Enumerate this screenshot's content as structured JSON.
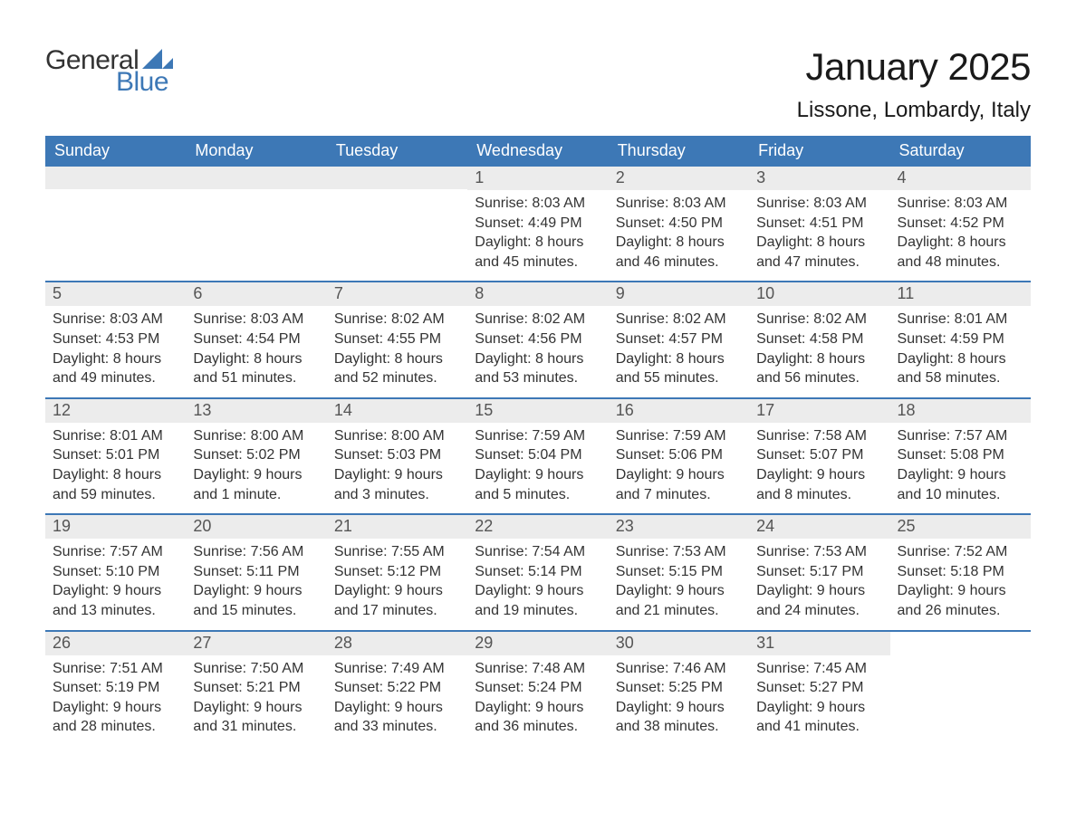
{
  "logo": {
    "general": "General",
    "blue": "Blue",
    "tri_color": "#3d78b6"
  },
  "title": "January 2025",
  "subtitle": "Lissone, Lombardy, Italy",
  "colors": {
    "header_bg": "#3d78b6",
    "header_text": "#ffffff",
    "daynum_bg": "#ececec",
    "daynum_text": "#555555",
    "row_divider": "#3d78b6",
    "body_text": "#333333",
    "page_bg": "#ffffff"
  },
  "typography": {
    "title_fontsize": 42,
    "subtitle_fontsize": 24,
    "dayhead_fontsize": 18,
    "daynum_fontsize": 18,
    "cell_fontsize": 16,
    "font_family": "Arial"
  },
  "day_headers": [
    "Sunday",
    "Monday",
    "Tuesday",
    "Wednesday",
    "Thursday",
    "Friday",
    "Saturday"
  ],
  "weeks": [
    [
      {
        "empty": true
      },
      {
        "empty": true
      },
      {
        "empty": true
      },
      {
        "n": "1",
        "sunrise": "Sunrise: 8:03 AM",
        "sunset": "Sunset: 4:49 PM",
        "d1": "Daylight: 8 hours",
        "d2": "and 45 minutes."
      },
      {
        "n": "2",
        "sunrise": "Sunrise: 8:03 AM",
        "sunset": "Sunset: 4:50 PM",
        "d1": "Daylight: 8 hours",
        "d2": "and 46 minutes."
      },
      {
        "n": "3",
        "sunrise": "Sunrise: 8:03 AM",
        "sunset": "Sunset: 4:51 PM",
        "d1": "Daylight: 8 hours",
        "d2": "and 47 minutes."
      },
      {
        "n": "4",
        "sunrise": "Sunrise: 8:03 AM",
        "sunset": "Sunset: 4:52 PM",
        "d1": "Daylight: 8 hours",
        "d2": "and 48 minutes."
      }
    ],
    [
      {
        "n": "5",
        "sunrise": "Sunrise: 8:03 AM",
        "sunset": "Sunset: 4:53 PM",
        "d1": "Daylight: 8 hours",
        "d2": "and 49 minutes."
      },
      {
        "n": "6",
        "sunrise": "Sunrise: 8:03 AM",
        "sunset": "Sunset: 4:54 PM",
        "d1": "Daylight: 8 hours",
        "d2": "and 51 minutes."
      },
      {
        "n": "7",
        "sunrise": "Sunrise: 8:02 AM",
        "sunset": "Sunset: 4:55 PM",
        "d1": "Daylight: 8 hours",
        "d2": "and 52 minutes."
      },
      {
        "n": "8",
        "sunrise": "Sunrise: 8:02 AM",
        "sunset": "Sunset: 4:56 PM",
        "d1": "Daylight: 8 hours",
        "d2": "and 53 minutes."
      },
      {
        "n": "9",
        "sunrise": "Sunrise: 8:02 AM",
        "sunset": "Sunset: 4:57 PM",
        "d1": "Daylight: 8 hours",
        "d2": "and 55 minutes."
      },
      {
        "n": "10",
        "sunrise": "Sunrise: 8:02 AM",
        "sunset": "Sunset: 4:58 PM",
        "d1": "Daylight: 8 hours",
        "d2": "and 56 minutes."
      },
      {
        "n": "11",
        "sunrise": "Sunrise: 8:01 AM",
        "sunset": "Sunset: 4:59 PM",
        "d1": "Daylight: 8 hours",
        "d2": "and 58 minutes."
      }
    ],
    [
      {
        "n": "12",
        "sunrise": "Sunrise: 8:01 AM",
        "sunset": "Sunset: 5:01 PM",
        "d1": "Daylight: 8 hours",
        "d2": "and 59 minutes."
      },
      {
        "n": "13",
        "sunrise": "Sunrise: 8:00 AM",
        "sunset": "Sunset: 5:02 PM",
        "d1": "Daylight: 9 hours",
        "d2": "and 1 minute."
      },
      {
        "n": "14",
        "sunrise": "Sunrise: 8:00 AM",
        "sunset": "Sunset: 5:03 PM",
        "d1": "Daylight: 9 hours",
        "d2": "and 3 minutes."
      },
      {
        "n": "15",
        "sunrise": "Sunrise: 7:59 AM",
        "sunset": "Sunset: 5:04 PM",
        "d1": "Daylight: 9 hours",
        "d2": "and 5 minutes."
      },
      {
        "n": "16",
        "sunrise": "Sunrise: 7:59 AM",
        "sunset": "Sunset: 5:06 PM",
        "d1": "Daylight: 9 hours",
        "d2": "and 7 minutes."
      },
      {
        "n": "17",
        "sunrise": "Sunrise: 7:58 AM",
        "sunset": "Sunset: 5:07 PM",
        "d1": "Daylight: 9 hours",
        "d2": "and 8 minutes."
      },
      {
        "n": "18",
        "sunrise": "Sunrise: 7:57 AM",
        "sunset": "Sunset: 5:08 PM",
        "d1": "Daylight: 9 hours",
        "d2": "and 10 minutes."
      }
    ],
    [
      {
        "n": "19",
        "sunrise": "Sunrise: 7:57 AM",
        "sunset": "Sunset: 5:10 PM",
        "d1": "Daylight: 9 hours",
        "d2": "and 13 minutes."
      },
      {
        "n": "20",
        "sunrise": "Sunrise: 7:56 AM",
        "sunset": "Sunset: 5:11 PM",
        "d1": "Daylight: 9 hours",
        "d2": "and 15 minutes."
      },
      {
        "n": "21",
        "sunrise": "Sunrise: 7:55 AM",
        "sunset": "Sunset: 5:12 PM",
        "d1": "Daylight: 9 hours",
        "d2": "and 17 minutes."
      },
      {
        "n": "22",
        "sunrise": "Sunrise: 7:54 AM",
        "sunset": "Sunset: 5:14 PM",
        "d1": "Daylight: 9 hours",
        "d2": "and 19 minutes."
      },
      {
        "n": "23",
        "sunrise": "Sunrise: 7:53 AM",
        "sunset": "Sunset: 5:15 PM",
        "d1": "Daylight: 9 hours",
        "d2": "and 21 minutes."
      },
      {
        "n": "24",
        "sunrise": "Sunrise: 7:53 AM",
        "sunset": "Sunset: 5:17 PM",
        "d1": "Daylight: 9 hours",
        "d2": "and 24 minutes."
      },
      {
        "n": "25",
        "sunrise": "Sunrise: 7:52 AM",
        "sunset": "Sunset: 5:18 PM",
        "d1": "Daylight: 9 hours",
        "d2": "and 26 minutes."
      }
    ],
    [
      {
        "n": "26",
        "sunrise": "Sunrise: 7:51 AM",
        "sunset": "Sunset: 5:19 PM",
        "d1": "Daylight: 9 hours",
        "d2": "and 28 minutes."
      },
      {
        "n": "27",
        "sunrise": "Sunrise: 7:50 AM",
        "sunset": "Sunset: 5:21 PM",
        "d1": "Daylight: 9 hours",
        "d2": "and 31 minutes."
      },
      {
        "n": "28",
        "sunrise": "Sunrise: 7:49 AM",
        "sunset": "Sunset: 5:22 PM",
        "d1": "Daylight: 9 hours",
        "d2": "and 33 minutes."
      },
      {
        "n": "29",
        "sunrise": "Sunrise: 7:48 AM",
        "sunset": "Sunset: 5:24 PM",
        "d1": "Daylight: 9 hours",
        "d2": "and 36 minutes."
      },
      {
        "n": "30",
        "sunrise": "Sunrise: 7:46 AM",
        "sunset": "Sunset: 5:25 PM",
        "d1": "Daylight: 9 hours",
        "d2": "and 38 minutes."
      },
      {
        "n": "31",
        "sunrise": "Sunrise: 7:45 AM",
        "sunset": "Sunset: 5:27 PM",
        "d1": "Daylight: 9 hours",
        "d2": "and 41 minutes."
      },
      {
        "empty": true,
        "nobar": true
      }
    ]
  ]
}
